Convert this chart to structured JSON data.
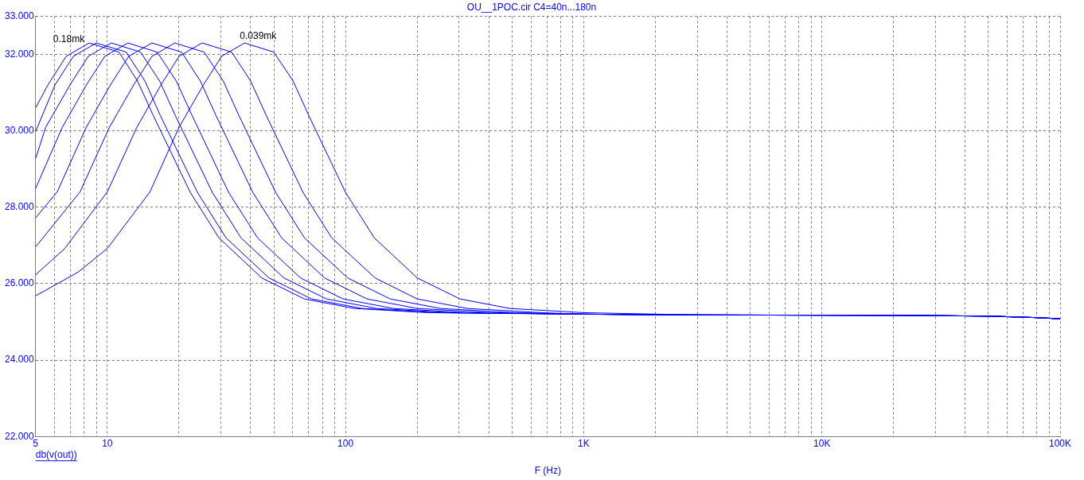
{
  "chart_data": {
    "type": "line",
    "title": "OU__1POC.cir C4=40n...180n",
    "xlabel": "F (Hz)",
    "log": "x",
    "grid": true,
    "legend": false,
    "marker": "none",
    "line_style": "solid",
    "xlim": [
      5,
      100000
    ],
    "ylim": [
      22,
      33
    ],
    "xticks": [
      5,
      {
        "value": 6,
        "label": null
      },
      {
        "value": 7,
        "label": null
      },
      {
        "value": 8,
        "label": null
      },
      {
        "value": 9,
        "label": null
      },
      10,
      {
        "value": 20,
        "label": null
      },
      {
        "value": 30,
        "label": null
      },
      {
        "value": 40,
        "label": null
      },
      {
        "value": 50,
        "label": null
      },
      {
        "value": 60,
        "label": null
      },
      {
        "value": 70,
        "label": null
      },
      {
        "value": 80,
        "label": null
      },
      {
        "value": 90,
        "label": null
      },
      100,
      {
        "value": 200,
        "label": null
      },
      {
        "value": 300,
        "label": null
      },
      {
        "value": 400,
        "label": null
      },
      {
        "value": 500,
        "label": null
      },
      {
        "value": 600,
        "label": null
      },
      {
        "value": 700,
        "label": null
      },
      {
        "value": 800,
        "label": null
      },
      {
        "value": 900,
        "label": null
      },
      {
        "value": 1000,
        "label": "1K"
      },
      {
        "value": 2000,
        "label": null
      },
      {
        "value": 3000,
        "label": null
      },
      {
        "value": 4000,
        "label": null
      },
      {
        "value": 5000,
        "label": null
      },
      {
        "value": 6000,
        "label": null
      },
      {
        "value": 7000,
        "label": null
      },
      {
        "value": 8000,
        "label": null
      },
      {
        "value": 9000,
        "label": null
      },
      {
        "value": 10000,
        "label": "10K"
      },
      {
        "value": 20000,
        "label": null
      },
      {
        "value": 30000,
        "label": null
      },
      {
        "value": 40000,
        "label": null
      },
      {
        "value": 50000,
        "label": null
      },
      {
        "value": 60000,
        "label": null
      },
      {
        "value": 70000,
        "label": null
      },
      {
        "value": 80000,
        "label": null
      },
      {
        "value": 90000,
        "label": null
      },
      {
        "value": 100000,
        "label": "100K"
      }
    ],
    "yticks": [
      {
        "value": 22,
        "label": "22.000"
      },
      {
        "value": 24,
        "label": "24.000"
      },
      {
        "value": 26,
        "label": "26.000"
      },
      {
        "value": 28,
        "label": "28.000"
      },
      {
        "value": 30,
        "label": "30.000"
      },
      {
        "value": 32,
        "label": "32.000"
      },
      {
        "value": 33,
        "label": "33.000"
      }
    ],
    "annotations": [
      "db(v(out))",
      {
        "text": "0.18mk",
        "x": 8.4,
        "y": 32.3
      },
      {
        "text": "0.039mk",
        "x": 37.7,
        "y": 32.3
      }
    ],
    "series": [
      {
        "color": "#0000ff",
        "x": [
          5,
          5.63,
          6.72,
          8.4,
          11.2,
          13.4,
          15.6,
          22.3,
          29.4,
          44.5,
          67.2,
          109,
          223,
          1000,
          3000,
          20000,
          50000,
          80000,
          100000
        ],
        "values": [
          30.6,
          31.2,
          31.95,
          32.3,
          32.06,
          31.3,
          30.4,
          28.39,
          27.2,
          26.15,
          25.6,
          25.35,
          25.24,
          25.2,
          25.18,
          25.17,
          25.15,
          25.11,
          25.08
        ]
      },
      {
        "color": "#0000ff",
        "x": [
          5,
          6.03,
          7.2,
          9,
          12,
          14.4,
          16.7,
          23.9,
          31.5,
          47.7,
          72,
          117,
          239,
          1000,
          3000,
          20000,
          50000,
          80000,
          100000
        ],
        "values": [
          29.98,
          31.2,
          31.95,
          32.3,
          32.06,
          31.3,
          30.4,
          28.39,
          27.2,
          26.15,
          25.6,
          25.35,
          25.24,
          25.2,
          25.18,
          25.17,
          25.15,
          25.11,
          25.08
        ]
      },
      {
        "color": "#0000ff",
        "x": [
          5,
          5.51,
          6.97,
          8.32,
          10.4,
          13.8,
          16.6,
          19.3,
          27.6,
          36.4,
          55.1,
          83.2,
          135,
          276,
          1000,
          3000,
          20000,
          50000,
          80000,
          100000
        ],
        "values": [
          29.27,
          30.09,
          31.2,
          31.95,
          32.3,
          32.06,
          31.3,
          30.4,
          28.39,
          27.2,
          26.15,
          25.6,
          25.35,
          25.24,
          25.2,
          25.18,
          25.17,
          25.15,
          25.11,
          25.08
        ]
      },
      {
        "color": "#0000ff",
        "x": [
          5,
          6.47,
          8.17,
          9.76,
          12.2,
          16.2,
          19.5,
          22.7,
          32.3,
          42.7,
          64.7,
          97.6,
          159,
          323,
          1000,
          3000,
          20000,
          50000,
          80000,
          100000
        ],
        "values": [
          28.49,
          30.09,
          31.2,
          31.95,
          32.3,
          32.06,
          31.3,
          30.4,
          28.39,
          27.2,
          26.15,
          25.6,
          25.35,
          25.24,
          25.2,
          25.18,
          25.17,
          25.15,
          25.11,
          25.08
        ]
      },
      {
        "color": "#0000ff",
        "x": [
          5,
          6.16,
          8.16,
          10.3,
          12.3,
          15.4,
          20.5,
          24.6,
          28.6,
          40.8,
          53.9,
          81.6,
          123,
          200,
          408,
          1000,
          3000,
          20000,
          50000,
          80000,
          100000
        ],
        "values": [
          27.72,
          28.4,
          30.09,
          31.2,
          31.95,
          32.3,
          32.06,
          31.3,
          30.4,
          28.39,
          27.2,
          26.15,
          25.6,
          25.35,
          25.24,
          25.2,
          25.18,
          25.17,
          25.15,
          25.11,
          25.08
        ]
      },
      {
        "color": "#0000ff",
        "x": [
          5,
          7.68,
          10.2,
          12.9,
          15.4,
          19.2,
          25.5,
          30.7,
          35.7,
          50.9,
          67.2,
          102,
          154,
          250,
          509,
          1000,
          3000,
          20000,
          50000,
          80000,
          100000
        ],
        "values": [
          26.96,
          28.4,
          30.09,
          31.2,
          31.95,
          32.3,
          32.06,
          31.3,
          30.4,
          28.39,
          27.2,
          26.15,
          25.6,
          25.35,
          25.24,
          25.2,
          25.18,
          25.17,
          25.15,
          25.11,
          25.08
        ]
      },
      {
        "color": "#0000ff",
        "x": [
          5,
          6.63,
          10,
          13.3,
          16.8,
          20,
          25,
          33.3,
          40,
          46.5,
          66.3,
          87.5,
          133,
          200,
          325,
          663,
          1000,
          3000,
          20000,
          50000,
          80000,
          100000
        ],
        "values": [
          26.23,
          26.92,
          28.4,
          30.09,
          31.2,
          31.95,
          32.3,
          32.06,
          31.3,
          30.4,
          28.39,
          27.2,
          26.15,
          25.6,
          25.35,
          25.24,
          25.2,
          25.18,
          25.17,
          25.15,
          25.11,
          25.08
        ]
      },
      {
        "color": "#0000ff",
        "x": [
          5,
          7.54,
          10,
          15.1,
          20,
          25.3,
          30.2,
          37.7,
          50,
          60.3,
          70.1,
          100,
          132,
          200,
          302,
          490,
          1000,
          3000,
          20000,
          50000,
          80000,
          100000
        ],
        "values": [
          25.68,
          26.3,
          26.92,
          28.4,
          30.09,
          31.2,
          31.95,
          32.3,
          32.06,
          31.3,
          30.4,
          28.39,
          27.2,
          26.15,
          25.6,
          25.35,
          25.24,
          25.18,
          25.17,
          25.15,
          25.11,
          25.08
        ]
      }
    ]
  }
}
